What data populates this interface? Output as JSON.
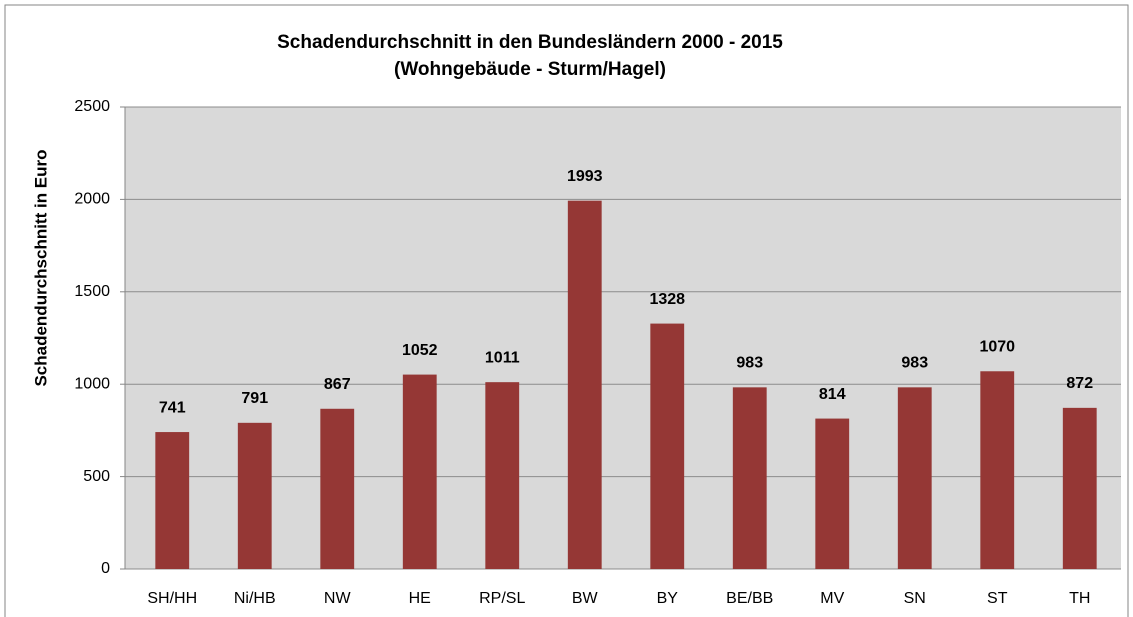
{
  "chart_data": {
    "type": "bar",
    "title": "Schadendurchschnitt in den Bundesländern 2000 - 2015",
    "subtitle": "(Wohngebäude - Sturm/Hagel)",
    "y_label": "Schadendurchschnitt in Euro",
    "categories": [
      "SH/HH",
      "Ni/HB",
      "NW",
      "HE",
      "RP/SL",
      "BW",
      "BY",
      "BE/BB",
      "MV",
      "SN",
      "ST",
      "TH"
    ],
    "values": [
      741,
      791,
      867,
      1052,
      1011,
      1993,
      1328,
      983,
      814,
      983,
      1070,
      872
    ],
    "color": "#953735",
    "ylim": [
      0,
      2500
    ],
    "yticks": [
      0,
      500,
      1000,
      1500,
      2000,
      2500
    ],
    "grid": true
  }
}
